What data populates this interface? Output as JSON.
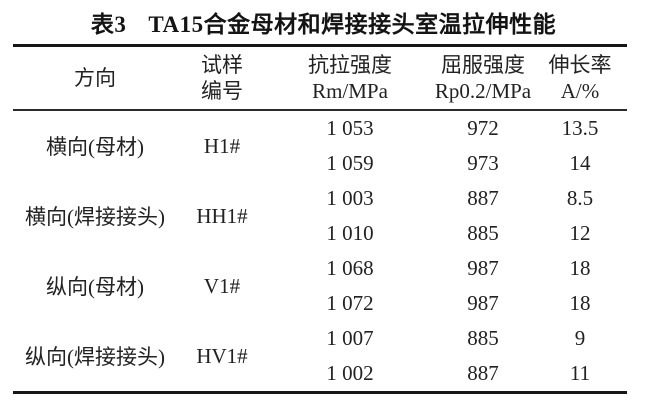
{
  "table": {
    "title": {
      "label": "表3",
      "text": "TA15合金母材和焊接接头室温拉伸性能"
    },
    "columns": [
      {
        "line1": "方向",
        "line2": ""
      },
      {
        "line1": "试样",
        "line2": "编号"
      },
      {
        "line1": "抗拉强度",
        "line2": "Rm/MPa"
      },
      {
        "line1": "屈服强度",
        "line2": "Rp0.2/MPa"
      },
      {
        "line1": "伸长率",
        "line2": "A/%"
      }
    ],
    "groups": [
      {
        "direction": "横向(母材)",
        "sample_id": "H1#",
        "rows": [
          [
            "1 053",
            "972",
            "13.5"
          ],
          [
            "1 059",
            "973",
            "14"
          ]
        ]
      },
      {
        "direction": "横向(焊接接头)",
        "sample_id": "HH1#",
        "rows": [
          [
            "1 003",
            "887",
            "8.5"
          ],
          [
            "1 010",
            "885",
            "12"
          ]
        ]
      },
      {
        "direction": "纵向(母材)",
        "sample_id": "V1#",
        "rows": [
          [
            "1 068",
            "987",
            "18"
          ],
          [
            "1 072",
            "987",
            "18"
          ]
        ]
      },
      {
        "direction": "纵向(焊接接头)",
        "sample_id": "HV1#",
        "rows": [
          [
            "1 007",
            "885",
            "9"
          ],
          [
            "1 002",
            "887",
            "11"
          ]
        ]
      }
    ]
  },
  "colors": {
    "text": "#222222",
    "title_text": "#141414",
    "rule_heavy": "#161616",
    "rule_light": "#2a2a2a",
    "background": "#ffffff"
  }
}
